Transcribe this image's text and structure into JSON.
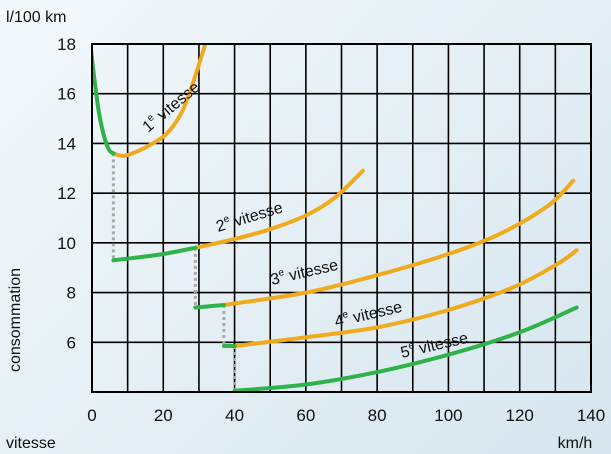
{
  "chart_data": {
    "type": "line",
    "y_unit_label": "l/100 km",
    "ylabel": "consommation",
    "xlabel": "vitesse",
    "x_unit_label": "km/h",
    "xlim": [
      0,
      140
    ],
    "ylim": [
      4,
      18
    ],
    "x_ticks": [
      0,
      20,
      40,
      60,
      80,
      100,
      120,
      140
    ],
    "y_ticks": [
      6,
      8,
      10,
      12,
      14,
      16,
      18
    ],
    "grid": true,
    "colors": {
      "optimal": "#2fb24a",
      "other": "#f0aa1e",
      "shift": "#a9a9a9"
    },
    "series": [
      {
        "name": "1e vitesse",
        "label_main": "1",
        "label_sup": "e",
        "label_rest": " vitesse",
        "green": [
          [
            -0.6,
            18.2
          ],
          [
            0,
            17.4
          ],
          [
            1,
            16.2
          ],
          [
            2,
            15.2
          ],
          [
            3,
            14.5
          ],
          [
            4,
            14.0
          ],
          [
            5,
            13.7
          ],
          [
            6,
            13.6
          ]
        ],
        "yellow": [
          [
            6,
            13.6
          ],
          [
            9,
            13.5
          ],
          [
            13,
            13.7
          ],
          [
            17,
            14.0
          ],
          [
            21,
            14.4
          ],
          [
            25,
            15.2
          ],
          [
            28,
            16.3
          ],
          [
            30.5,
            17.4
          ],
          [
            32,
            18.1
          ]
        ]
      },
      {
        "name": "2e vitesse",
        "label_main": "2",
        "label_sup": "e",
        "label_rest": " vitesse",
        "green": [
          [
            6,
            9.3
          ],
          [
            12,
            9.4
          ],
          [
            20,
            9.55
          ],
          [
            29,
            9.8
          ]
        ],
        "yellow": [
          [
            29,
            9.8
          ],
          [
            40,
            10.15
          ],
          [
            50,
            10.55
          ],
          [
            60,
            11.1
          ],
          [
            68,
            11.8
          ],
          [
            76,
            12.9
          ]
        ]
      },
      {
        "name": "3e vitesse",
        "label_main": "3",
        "label_sup": "e",
        "label_rest": " vitesse",
        "green": [
          [
            29,
            7.4
          ],
          [
            33,
            7.45
          ],
          [
            37,
            7.5
          ]
        ],
        "yellow": [
          [
            37,
            7.5
          ],
          [
            60,
            8.0
          ],
          [
            80,
            8.7
          ],
          [
            100,
            9.55
          ],
          [
            115,
            10.4
          ],
          [
            128,
            11.5
          ],
          [
            135,
            12.5
          ]
        ]
      },
      {
        "name": "4e vitesse",
        "label_main": "4",
        "label_sup": "e",
        "label_rest": " vitesse",
        "green": [
          [
            37,
            5.85
          ],
          [
            40,
            5.85
          ]
        ],
        "yellow": [
          [
            40,
            5.85
          ],
          [
            60,
            6.2
          ],
          [
            80,
            6.6
          ],
          [
            100,
            7.3
          ],
          [
            118,
            8.2
          ],
          [
            130,
            9.1
          ],
          [
            136,
            9.7
          ]
        ]
      },
      {
        "name": "5e vitesse",
        "label_main": "5",
        "label_sup": "e",
        "label_rest": " vitesse",
        "green": [
          [
            40,
            4.05
          ],
          [
            60,
            4.3
          ],
          [
            80,
            4.8
          ],
          [
            100,
            5.5
          ],
          [
            120,
            6.4
          ],
          [
            136,
            7.4
          ]
        ],
        "yellow": []
      }
    ],
    "shifts": [
      [
        [
          6,
          13.6
        ],
        [
          6,
          9.3
        ]
      ],
      [
        [
          29,
          9.8
        ],
        [
          29,
          7.4
        ]
      ],
      [
        [
          37,
          7.5
        ],
        [
          37,
          5.85
        ]
      ],
      [
        [
          40,
          5.85
        ],
        [
          40,
          4.05
        ]
      ]
    ]
  }
}
